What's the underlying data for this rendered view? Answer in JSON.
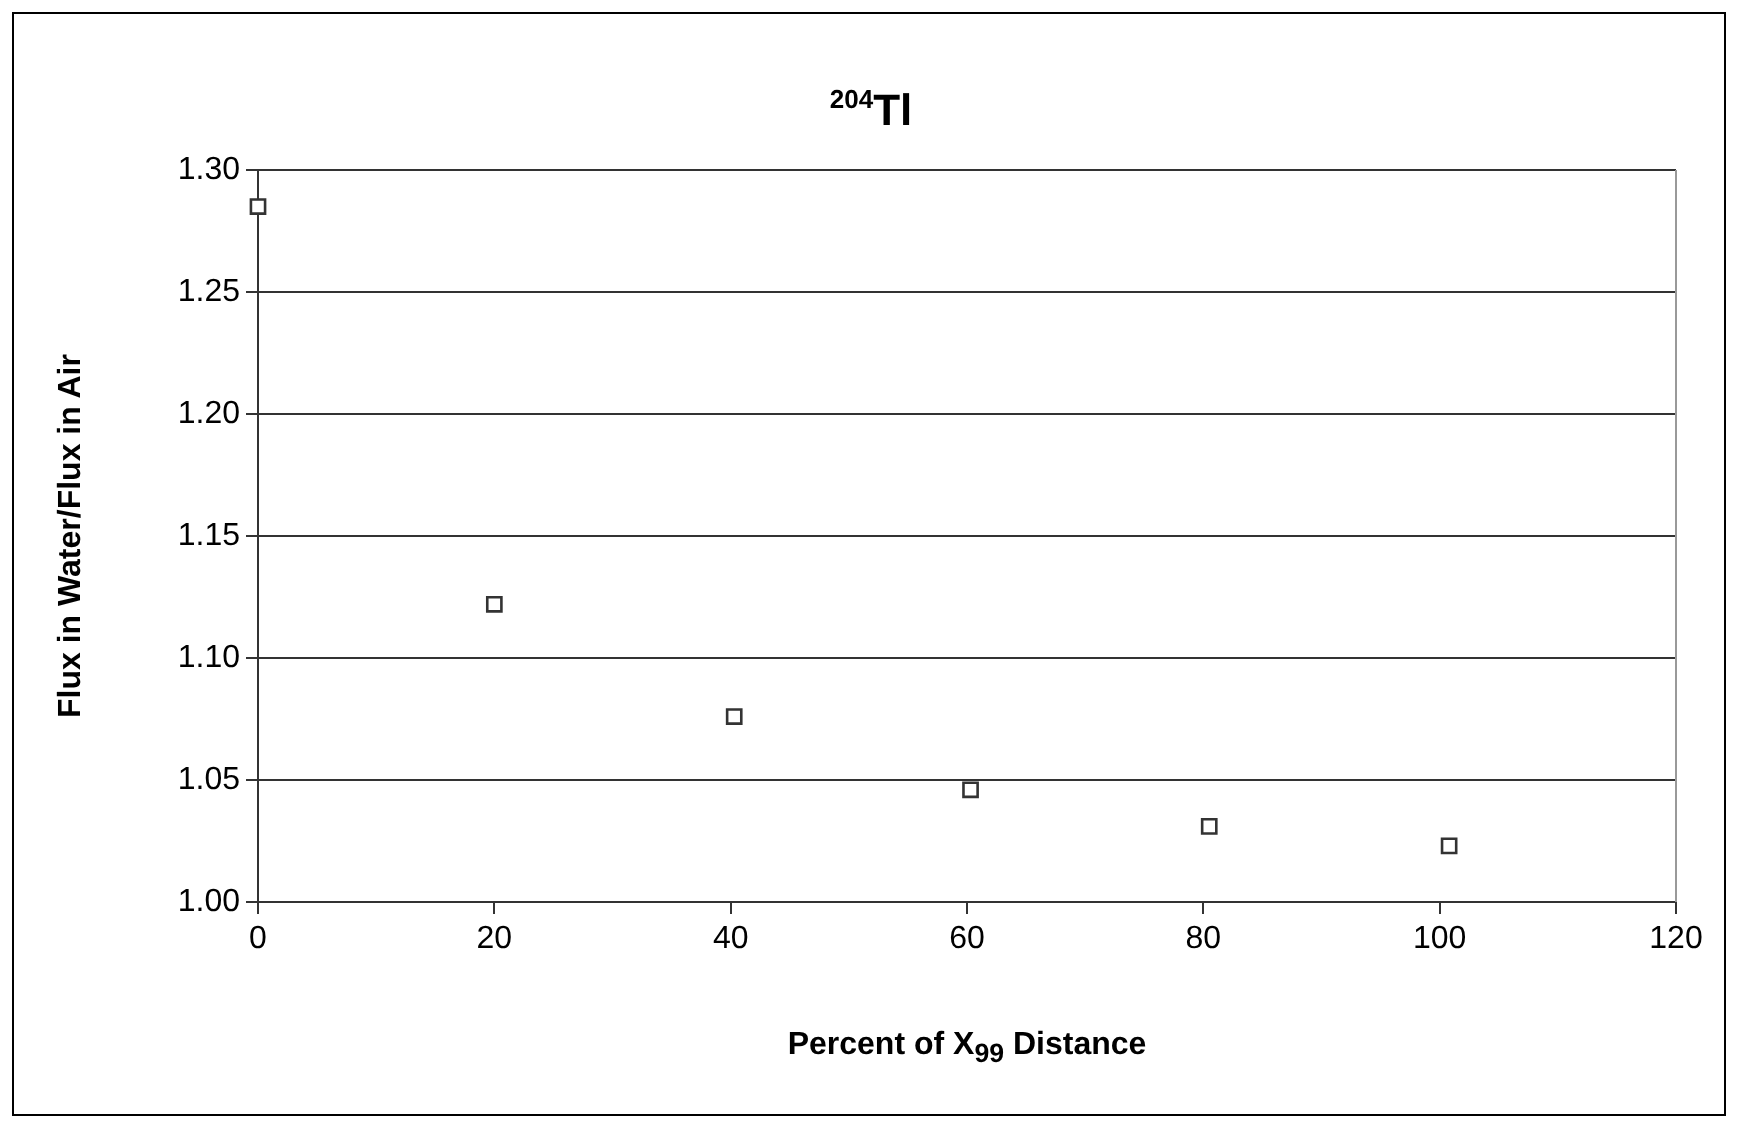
{
  "chart_data": {
    "type": "scatter",
    "title": "$^{204}$Tl",
    "xlabel": "Percent of X$_{99}$ Distance",
    "ylabel": "Flux in Water/Flux in Air",
    "x": [
      0,
      20,
      40.3,
      60.3,
      80.5,
      100.8
    ],
    "values": [
      1.285,
      1.122,
      1.076,
      1.046,
      1.031,
      1.023
    ],
    "color": "#333333",
    "marker": "square",
    "xlim": [
      0,
      120
    ],
    "xticks": [
      0,
      20,
      40,
      60,
      80,
      100,
      120
    ],
    "ylim": [
      1.0,
      1.3
    ],
    "yticks": [
      {
        "value": 1.0,
        "label": "1.00"
      },
      {
        "value": 1.05,
        "label": "1.05"
      },
      {
        "value": 1.1,
        "label": "1.10"
      },
      {
        "value": 1.15,
        "label": "1.15"
      },
      {
        "value": 1.2,
        "label": "1.20"
      },
      {
        "value": 1.25,
        "label": "1.25"
      },
      {
        "value": 1.3,
        "label": "1.30"
      }
    ],
    "grid": "y",
    "legend": false
  }
}
